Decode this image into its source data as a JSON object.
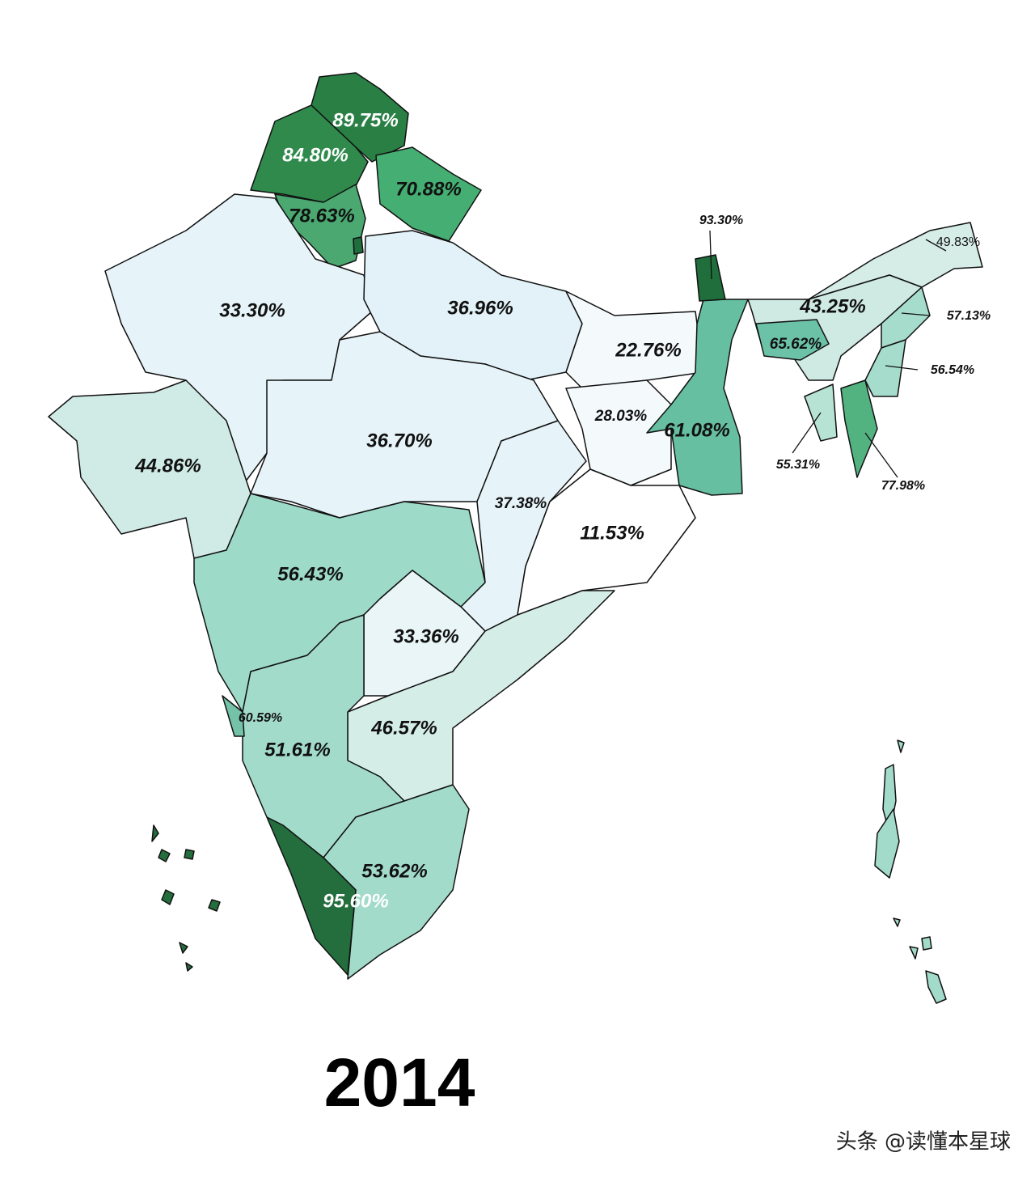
{
  "year": "2014",
  "watermark": "头条 @读懂本星球",
  "regions": [
    {
      "label": "89.75%"
    },
    {
      "label": "84.80%"
    },
    {
      "label": "70.88%"
    },
    {
      "label": "78.63%"
    },
    {
      "label": "33.30%"
    },
    {
      "label": "36.96%"
    },
    {
      "label": "93.30%"
    },
    {
      "label": "49.83%"
    },
    {
      "label": "43.25%"
    },
    {
      "label": "57.13%"
    },
    {
      "label": "22.76%"
    },
    {
      "label": "65.62%"
    },
    {
      "label": "56.54%"
    },
    {
      "label": "28.03%"
    },
    {
      "label": "61.08%"
    },
    {
      "label": "44.86%"
    },
    {
      "label": "36.70%"
    },
    {
      "label": "55.31%"
    },
    {
      "label": "77.98%"
    },
    {
      "label": "37.38%"
    },
    {
      "label": "11.53%"
    },
    {
      "label": "56.43%"
    },
    {
      "label": "33.36%"
    },
    {
      "label": "60.59%"
    },
    {
      "label": "46.57%"
    },
    {
      "label": "51.61%"
    },
    {
      "label": "53.62%"
    },
    {
      "label": "95.60%"
    }
  ]
}
